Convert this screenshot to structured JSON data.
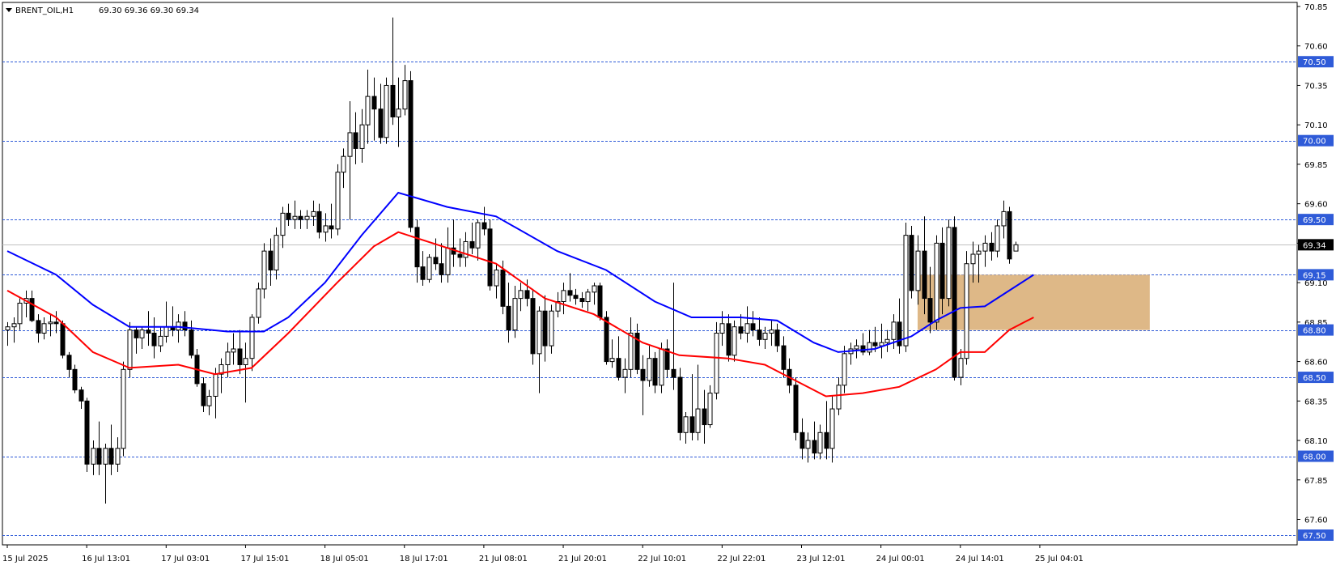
{
  "header": {
    "symbol": "BRENT_OIL,H1",
    "ohlc": "69.30 69.36 69.30 69.34"
  },
  "colors": {
    "up_candle": "#ffffff",
    "down_candle": "#000000",
    "wick": "#000000",
    "ma_fast": "#0000ff",
    "ma_slow": "#ff0000",
    "level_line": "#2f5bd8",
    "level_badge": "#2f5bd8",
    "current_badge": "#000000",
    "zone_fill": "#deb887"
  },
  "chart_data": {
    "type": "candlestick",
    "symbol": "BRENT_OIL",
    "timeframe": "H1",
    "y_axis": {
      "min": 67.5,
      "max": 70.85,
      "ticks": [
        "70.85",
        "70.60",
        "70.35",
        "70.10",
        "69.85",
        "69.60",
        "69.35",
        "69.10",
        "68.85",
        "68.60",
        "68.35",
        "68.10",
        "67.85",
        "67.60"
      ],
      "tick_values": [
        70.85,
        70.6,
        70.35,
        70.1,
        69.85,
        69.6,
        69.35,
        69.1,
        68.85,
        68.6,
        68.35,
        68.1,
        67.85,
        67.6
      ]
    },
    "x_axis": {
      "labels": [
        "15 Jul 2025",
        "16 Jul 13:01",
        "17 Jul 03:01",
        "17 Jul 15:01",
        "18 Jul 05:01",
        "18 Jul 17:01",
        "21 Jul 08:01",
        "21 Jul 20:01",
        "22 Jul 10:01",
        "22 Jul 22:01",
        "23 Jul 12:01",
        "24 Jul 00:01",
        "24 Jul 14:01",
        "25 Jul 04:01"
      ],
      "label_bar_index": [
        0,
        13,
        26,
        39,
        52,
        65,
        78,
        91,
        104,
        117,
        130,
        143,
        156,
        169
      ]
    },
    "current_price": "69.34",
    "current_price_value": 69.34,
    "levels": [
      {
        "label": "70.50",
        "value": 70.5
      },
      {
        "label": "70.00",
        "value": 70.0
      },
      {
        "label": "69.50",
        "value": 69.5
      },
      {
        "label": "69.15",
        "value": 69.15
      },
      {
        "label": "68.80",
        "value": 68.8
      },
      {
        "label": "68.50",
        "value": 68.5
      },
      {
        "label": "68.00",
        "value": 68.0
      },
      {
        "label": "67.50",
        "value": 67.5
      }
    ],
    "zone": {
      "from_bar": 149,
      "to_bar": 187,
      "low": 68.8,
      "high": 69.15
    },
    "candles": [
      [
        68.8,
        68.85,
        68.7,
        68.82
      ],
      [
        68.82,
        68.88,
        68.72,
        68.84
      ],
      [
        68.84,
        69.0,
        68.8,
        68.97
      ],
      [
        68.97,
        69.05,
        68.88,
        69.0
      ],
      [
        69.0,
        69.05,
        68.85,
        68.86
      ],
      [
        68.86,
        68.9,
        68.72,
        68.78
      ],
      [
        68.78,
        68.88,
        68.74,
        68.84
      ],
      [
        68.84,
        68.9,
        68.76,
        68.85
      ],
      [
        68.85,
        68.92,
        68.78,
        68.84
      ],
      [
        68.84,
        68.86,
        68.62,
        68.64
      ],
      [
        68.64,
        68.66,
        68.5,
        68.55
      ],
      [
        68.55,
        68.58,
        68.4,
        68.42
      ],
      [
        68.42,
        68.44,
        68.3,
        68.35
      ],
      [
        68.35,
        68.37,
        67.9,
        67.95
      ],
      [
        67.95,
        68.1,
        67.88,
        68.05
      ],
      [
        68.05,
        68.22,
        67.88,
        67.95
      ],
      [
        67.95,
        68.08,
        67.7,
        68.05
      ],
      [
        68.05,
        68.2,
        67.88,
        67.95
      ],
      [
        67.95,
        68.12,
        67.9,
        68.05
      ],
      [
        68.05,
        68.6,
        68.0,
        68.55
      ],
      [
        68.55,
        68.85,
        68.5,
        68.8
      ],
      [
        68.8,
        68.82,
        68.65,
        68.75
      ],
      [
        68.75,
        68.82,
        68.68,
        68.8
      ],
      [
        68.8,
        68.92,
        68.7,
        68.78
      ],
      [
        68.78,
        68.88,
        68.62,
        68.7
      ],
      [
        68.7,
        68.82,
        68.66,
        68.76
      ],
      [
        68.76,
        68.98,
        68.72,
        68.82
      ],
      [
        68.82,
        68.95,
        68.76,
        68.8
      ],
      [
        68.8,
        68.9,
        68.72,
        68.85
      ],
      [
        68.85,
        68.92,
        68.76,
        68.8
      ],
      [
        68.8,
        68.86,
        68.62,
        68.64
      ],
      [
        68.64,
        68.68,
        68.44,
        68.46
      ],
      [
        68.46,
        68.5,
        68.28,
        68.32
      ],
      [
        68.32,
        68.42,
        68.26,
        68.38
      ],
      [
        68.38,
        68.56,
        68.24,
        68.52
      ],
      [
        68.52,
        68.62,
        68.4,
        68.58
      ],
      [
        68.58,
        68.72,
        68.5,
        68.66
      ],
      [
        68.66,
        68.78,
        68.58,
        68.68
      ],
      [
        68.68,
        68.8,
        68.52,
        68.58
      ],
      [
        68.58,
        68.72,
        68.34,
        68.62
      ],
      [
        68.62,
        68.9,
        68.54,
        68.88
      ],
      [
        68.88,
        69.1,
        68.84,
        69.06
      ],
      [
        69.06,
        69.35,
        69.0,
        69.3
      ],
      [
        69.3,
        69.38,
        69.08,
        69.18
      ],
      [
        69.18,
        69.45,
        69.12,
        69.4
      ],
      [
        69.4,
        69.58,
        69.32,
        69.54
      ],
      [
        69.54,
        69.6,
        69.46,
        69.5
      ],
      [
        69.5,
        69.62,
        69.44,
        69.52
      ],
      [
        69.52,
        69.56,
        69.44,
        69.5
      ],
      [
        69.5,
        69.56,
        69.44,
        69.52
      ],
      [
        69.52,
        69.62,
        69.46,
        69.55
      ],
      [
        69.55,
        69.6,
        69.38,
        69.42
      ],
      [
        69.42,
        69.54,
        69.36,
        69.46
      ],
      [
        69.46,
        69.6,
        69.38,
        69.44
      ],
      [
        69.44,
        69.85,
        69.4,
        69.8
      ],
      [
        69.8,
        69.95,
        69.7,
        69.9
      ],
      [
        69.9,
        70.25,
        69.5,
        70.05
      ],
      [
        70.05,
        70.18,
        69.85,
        69.95
      ],
      [
        69.95,
        70.2,
        69.86,
        70.1
      ],
      [
        70.1,
        70.45,
        69.98,
        70.28
      ],
      [
        70.28,
        70.4,
        70.0,
        70.2
      ],
      [
        70.2,
        70.36,
        69.98,
        70.02
      ],
      [
        70.02,
        70.4,
        69.98,
        70.35
      ],
      [
        70.35,
        70.78,
        70.1,
        70.15
      ],
      [
        70.15,
        70.4,
        69.96,
        70.2
      ],
      [
        70.2,
        70.48,
        70.16,
        70.38
      ],
      [
        70.38,
        70.44,
        69.42,
        69.45
      ],
      [
        69.45,
        69.5,
        69.1,
        69.2
      ],
      [
        69.2,
        69.3,
        69.08,
        69.12
      ],
      [
        69.12,
        69.28,
        69.1,
        69.26
      ],
      [
        69.26,
        69.38,
        69.18,
        69.22
      ],
      [
        69.22,
        69.35,
        69.1,
        69.15
      ],
      [
        69.15,
        69.45,
        69.1,
        69.32
      ],
      [
        69.32,
        69.5,
        69.2,
        69.28
      ],
      [
        69.28,
        69.38,
        69.2,
        69.26
      ],
      [
        69.26,
        69.42,
        69.2,
        69.36
      ],
      [
        69.36,
        69.48,
        69.28,
        69.32
      ],
      [
        69.32,
        69.5,
        69.24,
        69.48
      ],
      [
        69.48,
        69.58,
        69.4,
        69.44
      ],
      [
        69.44,
        69.5,
        69.05,
        69.08
      ],
      [
        69.08,
        69.22,
        69.0,
        69.18
      ],
      [
        69.18,
        69.24,
        68.9,
        68.95
      ],
      [
        68.95,
        69.1,
        68.72,
        68.8
      ],
      [
        68.8,
        69.08,
        68.75,
        69.0
      ],
      [
        69.0,
        69.1,
        68.92,
        69.05
      ],
      [
        69.05,
        69.12,
        68.95,
        69.0
      ],
      [
        69.0,
        69.06,
        68.58,
        68.65
      ],
      [
        68.65,
        68.95,
        68.4,
        68.92
      ],
      [
        68.92,
        69.02,
        68.6,
        68.7
      ],
      [
        68.7,
        68.96,
        68.65,
        68.92
      ],
      [
        68.92,
        69.04,
        68.88,
        68.98
      ],
      [
        68.98,
        69.1,
        68.9,
        69.05
      ],
      [
        69.05,
        69.16,
        68.98,
        69.02
      ],
      [
        69.02,
        69.06,
        68.96,
        69.0
      ],
      [
        69.0,
        69.04,
        68.94,
        68.98
      ],
      [
        68.98,
        69.06,
        68.92,
        69.04
      ],
      [
        69.04,
        69.1,
        68.96,
        69.08
      ],
      [
        69.08,
        69.1,
        68.86,
        68.88
      ],
      [
        68.88,
        68.92,
        68.58,
        68.6
      ],
      [
        68.6,
        68.74,
        68.56,
        68.62
      ],
      [
        68.62,
        68.76,
        68.48,
        68.5
      ],
      [
        68.5,
        68.62,
        68.4,
        68.55
      ],
      [
        68.55,
        68.88,
        68.5,
        68.78
      ],
      [
        68.78,
        68.84,
        68.52,
        68.55
      ],
      [
        68.55,
        68.64,
        68.26,
        68.48
      ],
      [
        68.48,
        68.7,
        68.44,
        68.62
      ],
      [
        68.62,
        68.66,
        68.4,
        68.45
      ],
      [
        68.45,
        68.72,
        68.4,
        68.68
      ],
      [
        68.68,
        68.74,
        68.5,
        68.55
      ],
      [
        68.55,
        69.1,
        68.42,
        68.5
      ],
      [
        68.5,
        68.56,
        68.1,
        68.15
      ],
      [
        68.15,
        68.28,
        68.08,
        68.25
      ],
      [
        68.25,
        68.52,
        68.1,
        68.15
      ],
      [
        68.15,
        68.58,
        68.1,
        68.3
      ],
      [
        68.3,
        68.42,
        68.08,
        68.2
      ],
      [
        68.2,
        68.45,
        68.18,
        68.4
      ],
      [
        68.4,
        68.85,
        68.36,
        68.78
      ],
      [
        68.78,
        68.92,
        68.7,
        68.84
      ],
      [
        68.84,
        68.9,
        68.6,
        68.64
      ],
      [
        68.64,
        68.86,
        68.6,
        68.82
      ],
      [
        68.82,
        68.9,
        68.74,
        68.78
      ],
      [
        68.78,
        68.95,
        68.72,
        68.84
      ],
      [
        68.84,
        68.92,
        68.76,
        68.8
      ],
      [
        68.8,
        68.88,
        68.7,
        68.74
      ],
      [
        68.74,
        68.82,
        68.68,
        68.78
      ],
      [
        68.78,
        68.86,
        68.7,
        68.8
      ],
      [
        68.8,
        68.84,
        68.66,
        68.7
      ],
      [
        68.7,
        68.76,
        68.5,
        68.55
      ],
      [
        68.55,
        68.62,
        68.4,
        68.45
      ],
      [
        68.45,
        68.5,
        68.1,
        68.15
      ],
      [
        68.15,
        68.24,
        67.98,
        68.05
      ],
      [
        68.05,
        68.15,
        67.96,
        68.1
      ],
      [
        68.1,
        68.22,
        67.98,
        68.02
      ],
      [
        68.02,
        68.2,
        67.98,
        68.15
      ],
      [
        68.15,
        68.35,
        67.98,
        68.05
      ],
      [
        68.05,
        68.38,
        67.96,
        68.3
      ],
      [
        68.3,
        68.5,
        68.26,
        68.45
      ],
      [
        68.45,
        68.7,
        68.4,
        68.65
      ],
      [
        68.65,
        68.72,
        68.58,
        68.68
      ],
      [
        68.68,
        68.74,
        68.62,
        68.7
      ],
      [
        68.7,
        68.78,
        68.64,
        68.66
      ],
      [
        68.66,
        68.8,
        68.64,
        68.72
      ],
      [
        68.72,
        68.82,
        68.66,
        68.7
      ],
      [
        68.7,
        68.84,
        68.62,
        68.72
      ],
      [
        68.72,
        68.8,
        68.66,
        68.74
      ],
      [
        68.74,
        68.9,
        68.68,
        68.85
      ],
      [
        68.85,
        69.0,
        68.65,
        68.7
      ],
      [
        68.7,
        69.48,
        68.66,
        69.4
      ],
      [
        69.4,
        69.46,
        69.0,
        69.05
      ],
      [
        69.05,
        69.4,
        68.96,
        69.3
      ],
      [
        69.3,
        69.52,
        68.9,
        69.0
      ],
      [
        69.0,
        69.2,
        68.78,
        68.85
      ],
      [
        68.85,
        69.4,
        68.8,
        69.35
      ],
      [
        69.35,
        69.45,
        68.9,
        69.0
      ],
      [
        69.0,
        69.5,
        68.95,
        69.45
      ],
      [
        69.45,
        69.52,
        68.48,
        68.5
      ],
      [
        68.5,
        68.68,
        68.45,
        68.62
      ],
      [
        68.62,
        69.3,
        68.58,
        69.22
      ],
      [
        69.22,
        69.36,
        69.1,
        69.28
      ],
      [
        69.28,
        69.34,
        69.1,
        69.3
      ],
      [
        69.3,
        69.4,
        69.2,
        69.35
      ],
      [
        69.35,
        69.42,
        69.24,
        69.3
      ],
      [
        69.3,
        69.5,
        69.26,
        69.46
      ],
      [
        69.46,
        69.62,
        69.38,
        69.55
      ],
      [
        69.55,
        69.58,
        69.22,
        69.25
      ],
      [
        69.3,
        69.36,
        69.3,
        69.34
      ]
    ],
    "ma_fast": {
      "name": "",
      "color": "#0000ff",
      "points": [
        [
          0,
          69.3
        ],
        [
          8,
          69.15
        ],
        [
          14,
          68.96
        ],
        [
          20,
          68.82
        ],
        [
          28,
          68.82
        ],
        [
          36,
          68.79
        ],
        [
          42,
          68.79
        ],
        [
          46,
          68.88
        ],
        [
          52,
          69.1
        ],
        [
          58,
          69.4
        ],
        [
          64,
          69.67
        ],
        [
          72,
          69.58
        ],
        [
          80,
          69.52
        ],
        [
          90,
          69.3
        ],
        [
          98,
          69.18
        ],
        [
          106,
          68.98
        ],
        [
          112,
          68.88
        ],
        [
          120,
          68.88
        ],
        [
          126,
          68.86
        ],
        [
          132,
          68.72
        ],
        [
          136,
          68.66
        ],
        [
          142,
          68.68
        ],
        [
          148,
          68.76
        ],
        [
          152,
          68.86
        ],
        [
          156,
          68.94
        ],
        [
          160,
          68.95
        ],
        [
          164,
          69.05
        ],
        [
          168,
          69.15
        ]
      ]
    },
    "ma_slow": {
      "name": "",
      "color": "#ff0000",
      "points": [
        [
          0,
          69.05
        ],
        [
          8,
          68.88
        ],
        [
          14,
          68.66
        ],
        [
          20,
          68.56
        ],
        [
          28,
          68.58
        ],
        [
          34,
          68.52
        ],
        [
          40,
          68.56
        ],
        [
          46,
          68.78
        ],
        [
          54,
          69.1
        ],
        [
          60,
          69.33
        ],
        [
          64,
          69.42
        ],
        [
          72,
          69.32
        ],
        [
          80,
          69.22
        ],
        [
          88,
          69.0
        ],
        [
          96,
          68.9
        ],
        [
          104,
          68.72
        ],
        [
          110,
          68.64
        ],
        [
          118,
          68.62
        ],
        [
          124,
          68.58
        ],
        [
          128,
          68.5
        ],
        [
          134,
          68.38
        ],
        [
          140,
          68.4
        ],
        [
          146,
          68.44
        ],
        [
          152,
          68.55
        ],
        [
          156,
          68.66
        ],
        [
          160,
          68.66
        ],
        [
          164,
          68.8
        ],
        [
          168,
          68.88
        ]
      ]
    }
  }
}
